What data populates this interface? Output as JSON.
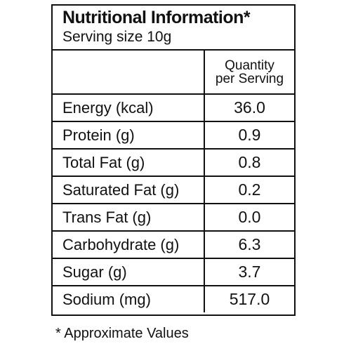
{
  "label": {
    "title": "Nutritional Information*",
    "serving_size": "Serving size 10g",
    "column_header_line1": "Quantity",
    "column_header_line2": "per Serving",
    "rows": [
      {
        "nutrient": "Energy (kcal)",
        "value": "36.0"
      },
      {
        "nutrient": "Protein (g)",
        "value": "0.9"
      },
      {
        "nutrient": "Total Fat (g)",
        "value": "0.8"
      },
      {
        "nutrient": "Saturated Fat (g)",
        "value": "0.2"
      },
      {
        "nutrient": "Trans Fat (g)",
        "value": "0.0"
      },
      {
        "nutrient": "Carbohydrate (g)",
        "value": "6.3"
      },
      {
        "nutrient": "Sugar (g)",
        "value": "3.7"
      },
      {
        "nutrient": "Sodium (mg)",
        "value": "517.0"
      }
    ],
    "footnote": "* Approximate Values"
  }
}
